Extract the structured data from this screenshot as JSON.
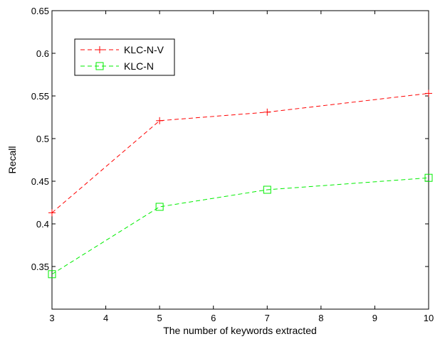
{
  "chart_data": {
    "type": "line",
    "title": "",
    "xlabel": "The number of keywords extracted",
    "ylabel": "Recall",
    "xlim": [
      3,
      10
    ],
    "ylim": [
      0.3,
      0.65
    ],
    "xticks": [
      3,
      4,
      5,
      6,
      7,
      8,
      9,
      10
    ],
    "yticks": [
      0.35,
      0.4,
      0.45,
      0.5,
      0.55,
      0.6,
      0.65
    ],
    "ytick_labels": [
      "0.35",
      "0.4",
      "0.45",
      "0.5",
      "0.55",
      "0.6",
      "0.65"
    ],
    "grid": false,
    "legend_position": "top-left",
    "x": [
      3,
      5,
      7,
      10
    ],
    "series": [
      {
        "name": "KLC-N-V",
        "values": [
          0.413,
          0.521,
          0.531,
          0.553
        ],
        "color": "#ff0000",
        "marker": "plus",
        "line_style": "dashed"
      },
      {
        "name": "KLC-N",
        "values": [
          0.341,
          0.42,
          0.44,
          0.454
        ],
        "color": "#00ee00",
        "marker": "square",
        "line_style": "dashed"
      }
    ]
  }
}
